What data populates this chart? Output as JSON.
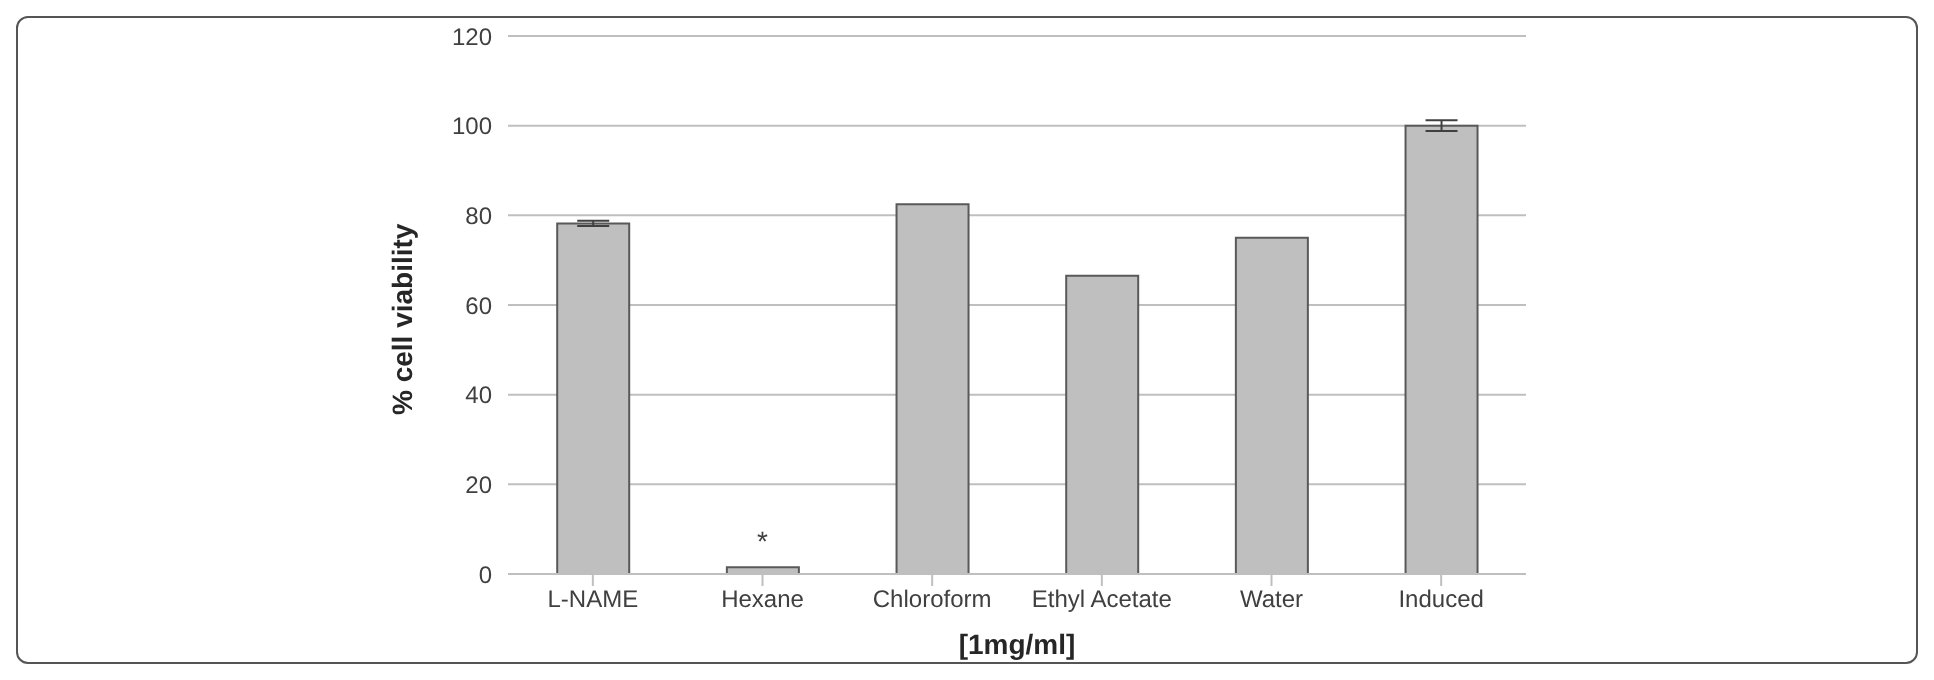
{
  "chart_data": {
    "type": "bar",
    "xlabel": "[1mg/ml]",
    "ylabel": "% cell viability",
    "categories": [
      "L-NAME",
      "Hexane",
      "Chloroform",
      "Ethyl Acetate",
      "Water",
      "Induced"
    ],
    "values": [
      78.2,
      1.5,
      82.5,
      66.5,
      75,
      100
    ],
    "errors": [
      0.6,
      null,
      null,
      null,
      null,
      1.2
    ],
    "color": "#bfbfbf",
    "ylim": [
      0,
      120
    ],
    "yticks": [
      0,
      20,
      40,
      60,
      80,
      100,
      120
    ],
    "grid": "y",
    "annotations": [
      {
        "text": "*",
        "x": "Hexane",
        "y": 1.5
      }
    ]
  }
}
